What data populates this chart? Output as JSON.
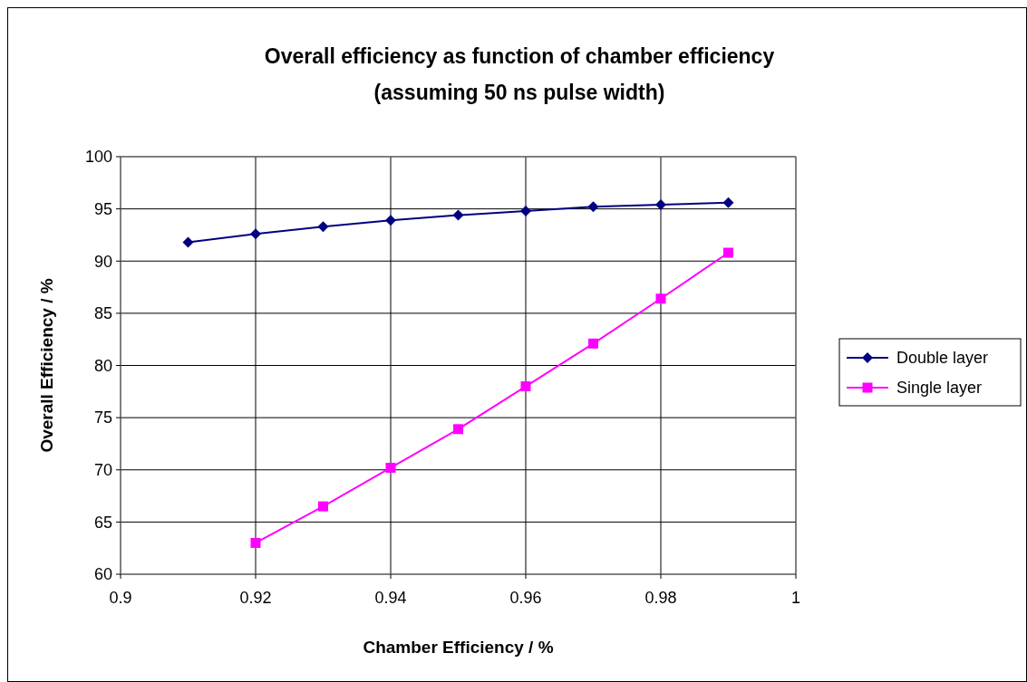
{
  "chart_data": {
    "type": "line",
    "title": "Overall efficiency as function of chamber efficiency",
    "subtitle": "(assuming 50 ns pulse width)",
    "xlabel": "Chamber Efficiency / %",
    "ylabel": "Overall Efficiency / %",
    "x": [
      0.91,
      0.92,
      0.93,
      0.94,
      0.95,
      0.96,
      0.97,
      0.98,
      0.99
    ],
    "series": [
      {
        "name": "Double layer",
        "color": "#000080",
        "marker": "diamond",
        "values": [
          91.8,
          92.6,
          93.3,
          93.9,
          94.4,
          94.8,
          95.2,
          95.4,
          95.6
        ]
      },
      {
        "name": "Single layer",
        "color": "#ff00ff",
        "marker": "square",
        "values": [
          null,
          63.0,
          66.5,
          70.2,
          73.9,
          78.0,
          82.1,
          86.4,
          90.8
        ]
      }
    ],
    "xlim": [
      0.9,
      1
    ],
    "xticks": [
      0.9,
      0.92,
      0.94,
      0.96,
      0.98,
      1
    ],
    "ylim": [
      60,
      100
    ],
    "yticks": [
      60,
      65,
      70,
      75,
      80,
      85,
      90,
      95,
      100
    ],
    "grid": true,
    "legend": "right"
  }
}
